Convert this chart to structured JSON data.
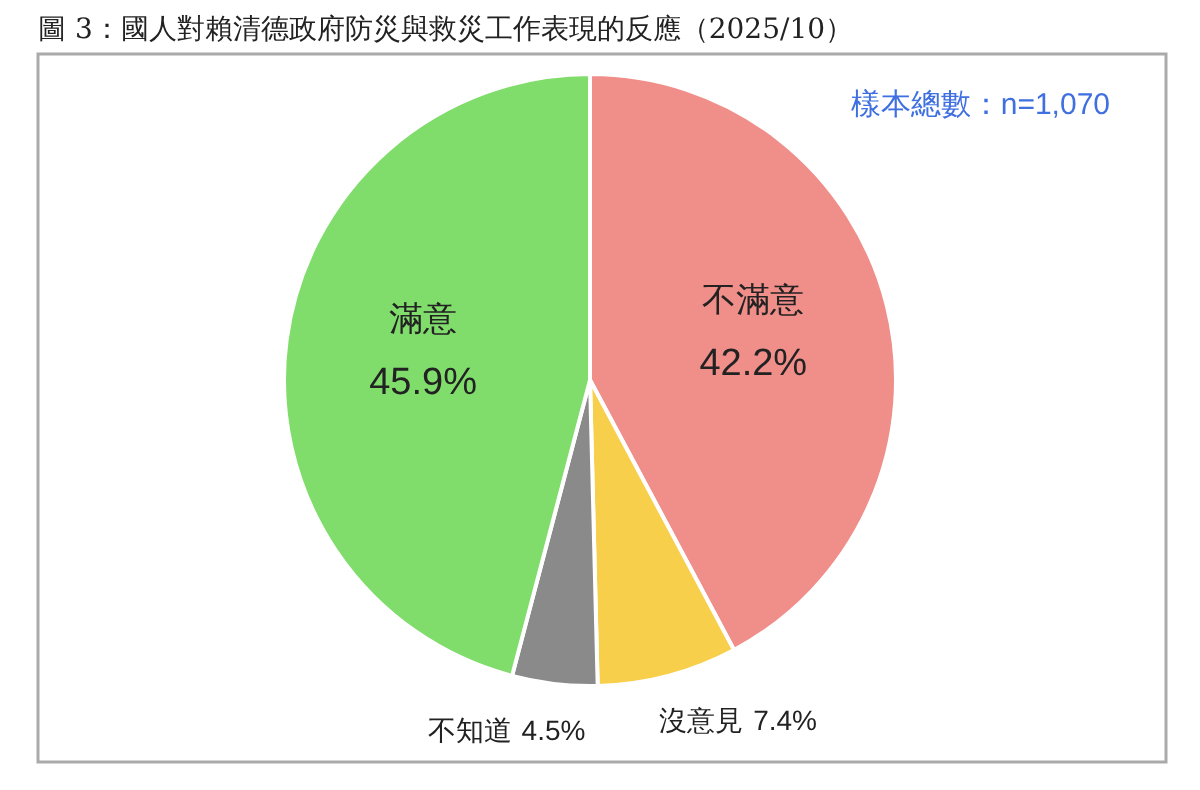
{
  "chart_data": {
    "type": "pie",
    "title": "圖 3：國人對賴清德政府防災與救災工作表現的反應（2025/10）",
    "annotations": [
      "樣本總數：n=1,070"
    ],
    "categories": [
      "不滿意",
      "沒意見",
      "不知道",
      "滿意"
    ],
    "values": [
      42.2,
      7.4,
      4.5,
      45.9
    ],
    "value_labels": [
      "42.2%",
      "7.4%",
      "4.5%",
      "45.9%"
    ],
    "colors": [
      "#f08e8a",
      "#f7cf4b",
      "#8a8a8a",
      "#80dd6c"
    ]
  }
}
